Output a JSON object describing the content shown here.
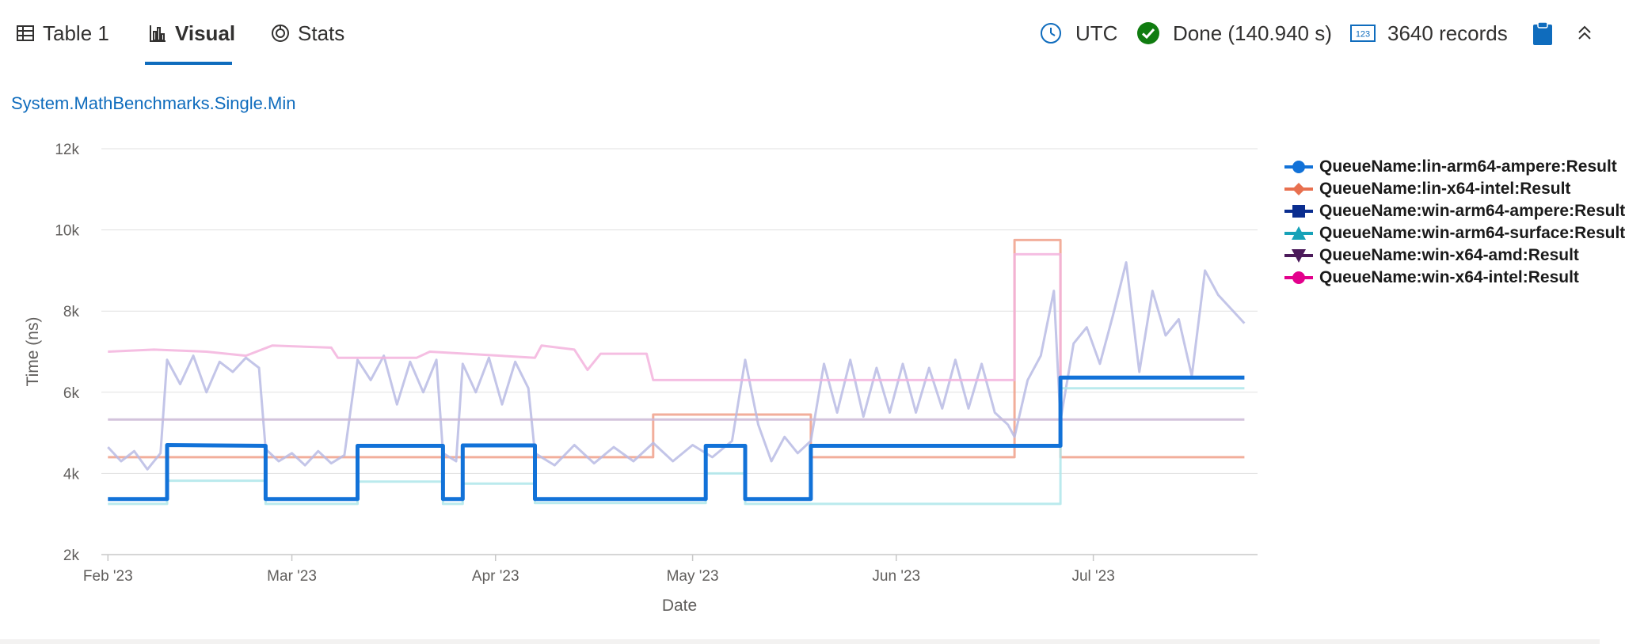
{
  "tabs": [
    {
      "label": "Table 1",
      "icon": "table-icon"
    },
    {
      "label": "Visual",
      "icon": "bar-chart-icon",
      "active": true
    },
    {
      "label": "Stats",
      "icon": "stats-icon"
    }
  ],
  "status": {
    "timezone": "UTC",
    "done_text": "Done (140.940 s)",
    "records_text": "3640 records"
  },
  "colors": {
    "accent": "#0f6cbd",
    "success": "#107c10"
  },
  "chart_data": {
    "type": "line",
    "title": "System.MathBenchmarks.Single.Min",
    "xlabel": "Date",
    "ylabel": "Time (ns)",
    "ylim": [
      2000,
      12000
    ],
    "yticks": [
      2000,
      4000,
      6000,
      8000,
      10000,
      12000
    ],
    "ytick_labels": [
      "2k",
      "4k",
      "6k",
      "8k",
      "10k",
      "12k"
    ],
    "xrange": [
      "2023-01-31",
      "2023-07-26"
    ],
    "xticks": [
      "2023-02-01",
      "2023-03-01",
      "2023-04-01",
      "2023-05-01",
      "2023-06-01",
      "2023-07-01"
    ],
    "xtick_labels": [
      "Feb '23",
      "Mar '23",
      "Apr '23",
      "May '23",
      "Jun '23",
      "Jul '23"
    ],
    "grid": true,
    "legend_position": "right",
    "series": [
      {
        "name": "QueueName:lin-arm64-ampere:Result",
        "color": "#1272d8",
        "marker": "circle",
        "emphasized": true,
        "points": [
          [
            "2023-02-01",
            3370
          ],
          [
            "2023-02-10",
            3370
          ],
          [
            "2023-02-10",
            4700
          ],
          [
            "2023-02-25",
            4680
          ],
          [
            "2023-02-25",
            3370
          ],
          [
            "2023-03-11",
            3370
          ],
          [
            "2023-03-11",
            4680
          ],
          [
            "2023-03-24",
            4680
          ],
          [
            "2023-03-24",
            3370
          ],
          [
            "2023-03-27",
            3370
          ],
          [
            "2023-03-27",
            4690
          ],
          [
            "2023-04-07",
            4690
          ],
          [
            "2023-04-07",
            3370
          ],
          [
            "2023-05-03",
            3370
          ],
          [
            "2023-05-03",
            4680
          ],
          [
            "2023-05-09",
            4680
          ],
          [
            "2023-05-09",
            3370
          ],
          [
            "2023-05-19",
            3370
          ],
          [
            "2023-05-19",
            4680
          ],
          [
            "2023-06-26",
            4680
          ],
          [
            "2023-06-26",
            6360
          ],
          [
            "2023-07-24",
            6360
          ]
        ]
      },
      {
        "name": "QueueName:lin-x64-intel:Result",
        "color": "#f0a08a",
        "marker": "diamond",
        "points": [
          [
            "2023-02-01",
            4400
          ],
          [
            "2023-04-25",
            4400
          ],
          [
            "2023-04-25",
            5450
          ],
          [
            "2023-05-19",
            5450
          ],
          [
            "2023-05-19",
            4400
          ],
          [
            "2023-06-19",
            4400
          ],
          [
            "2023-06-19",
            9750
          ],
          [
            "2023-06-26",
            9750
          ],
          [
            "2023-06-26",
            4400
          ],
          [
            "2023-07-24",
            4400
          ]
        ]
      },
      {
        "name": "QueueName:win-arm64-ampere:Result",
        "color": "#b9bbe4",
        "marker": "square",
        "points": [
          [
            "2023-02-01",
            4650
          ],
          [
            "2023-02-03",
            4300
          ],
          [
            "2023-02-05",
            4550
          ],
          [
            "2023-02-07",
            4100
          ],
          [
            "2023-02-09",
            4500
          ],
          [
            "2023-02-10",
            6800
          ],
          [
            "2023-02-12",
            6200
          ],
          [
            "2023-02-14",
            6900
          ],
          [
            "2023-02-16",
            6000
          ],
          [
            "2023-02-18",
            6750
          ],
          [
            "2023-02-20",
            6500
          ],
          [
            "2023-02-22",
            6850
          ],
          [
            "2023-02-24",
            6600
          ],
          [
            "2023-02-25",
            4600
          ],
          [
            "2023-02-27",
            4300
          ],
          [
            "2023-03-01",
            4500
          ],
          [
            "2023-03-03",
            4200
          ],
          [
            "2023-03-05",
            4550
          ],
          [
            "2023-03-07",
            4250
          ],
          [
            "2023-03-09",
            4450
          ],
          [
            "2023-03-11",
            6800
          ],
          [
            "2023-03-13",
            6300
          ],
          [
            "2023-03-15",
            6900
          ],
          [
            "2023-03-17",
            5700
          ],
          [
            "2023-03-19",
            6750
          ],
          [
            "2023-03-21",
            6000
          ],
          [
            "2023-03-23",
            6800
          ],
          [
            "2023-03-24",
            4500
          ],
          [
            "2023-03-26",
            4300
          ],
          [
            "2023-03-27",
            6700
          ],
          [
            "2023-03-29",
            6000
          ],
          [
            "2023-03-31",
            6850
          ],
          [
            "2023-04-02",
            5700
          ],
          [
            "2023-04-04",
            6750
          ],
          [
            "2023-04-06",
            6100
          ],
          [
            "2023-04-07",
            4500
          ],
          [
            "2023-04-10",
            4200
          ],
          [
            "2023-04-13",
            4700
          ],
          [
            "2023-04-16",
            4250
          ],
          [
            "2023-04-19",
            4650
          ],
          [
            "2023-04-22",
            4300
          ],
          [
            "2023-04-25",
            4750
          ],
          [
            "2023-04-28",
            4300
          ],
          [
            "2023-05-01",
            4700
          ],
          [
            "2023-05-04",
            4400
          ],
          [
            "2023-05-07",
            4800
          ],
          [
            "2023-05-09",
            6800
          ],
          [
            "2023-05-11",
            5200
          ],
          [
            "2023-05-13",
            4300
          ],
          [
            "2023-05-15",
            4900
          ],
          [
            "2023-05-17",
            4500
          ],
          [
            "2023-05-19",
            4800
          ],
          [
            "2023-05-21",
            6700
          ],
          [
            "2023-05-23",
            5500
          ],
          [
            "2023-05-25",
            6800
          ],
          [
            "2023-05-27",
            5400
          ],
          [
            "2023-05-29",
            6600
          ],
          [
            "2023-05-31",
            5500
          ],
          [
            "2023-06-02",
            6700
          ],
          [
            "2023-06-04",
            5500
          ],
          [
            "2023-06-06",
            6600
          ],
          [
            "2023-06-08",
            5600
          ],
          [
            "2023-06-10",
            6800
          ],
          [
            "2023-06-12",
            5600
          ],
          [
            "2023-06-14",
            6700
          ],
          [
            "2023-06-16",
            5500
          ],
          [
            "2023-06-18",
            5200
          ],
          [
            "2023-06-19",
            4900
          ],
          [
            "2023-06-21",
            6300
          ],
          [
            "2023-06-23",
            6900
          ],
          [
            "2023-06-25",
            8500
          ],
          [
            "2023-06-26",
            5300
          ],
          [
            "2023-06-28",
            7200
          ],
          [
            "2023-06-30",
            7600
          ],
          [
            "2023-07-02",
            6700
          ],
          [
            "2023-07-04",
            7900
          ],
          [
            "2023-07-06",
            9200
          ],
          [
            "2023-07-08",
            6500
          ],
          [
            "2023-07-10",
            8500
          ],
          [
            "2023-07-12",
            7400
          ],
          [
            "2023-07-14",
            7800
          ],
          [
            "2023-07-16",
            6400
          ],
          [
            "2023-07-18",
            9000
          ],
          [
            "2023-07-20",
            8400
          ],
          [
            "2023-07-24",
            7700
          ]
        ]
      },
      {
        "name": "QueueName:win-arm64-surface:Result",
        "color": "#aee6ea",
        "marker": "triangle",
        "points": [
          [
            "2023-02-01",
            3250
          ],
          [
            "2023-02-10",
            3250
          ],
          [
            "2023-02-10",
            3820
          ],
          [
            "2023-02-25",
            3820
          ],
          [
            "2023-02-25",
            3250
          ],
          [
            "2023-03-11",
            3250
          ],
          [
            "2023-03-11",
            3800
          ],
          [
            "2023-03-24",
            3800
          ],
          [
            "2023-03-24",
            3250
          ],
          [
            "2023-03-27",
            3250
          ],
          [
            "2023-03-27",
            3750
          ],
          [
            "2023-04-07",
            3750
          ],
          [
            "2023-04-07",
            3270
          ],
          [
            "2023-05-03",
            3270
          ],
          [
            "2023-05-03",
            4000
          ],
          [
            "2023-05-09",
            4000
          ],
          [
            "2023-05-09",
            3250
          ],
          [
            "2023-05-19",
            3250
          ],
          [
            "2023-05-19",
            3250
          ],
          [
            "2023-06-26",
            3250
          ],
          [
            "2023-06-26",
            6100
          ],
          [
            "2023-07-24",
            6100
          ]
        ]
      },
      {
        "name": "QueueName:win-x64-amd:Result",
        "color": "#cbb8d6",
        "marker": "triangle-down",
        "points": [
          [
            "2023-02-01",
            5330
          ],
          [
            "2023-07-24",
            5330
          ]
        ]
      },
      {
        "name": "QueueName:win-x64-intel:Result",
        "color": "#f3b3dd",
        "marker": "circle",
        "points": [
          [
            "2023-02-01",
            7000
          ],
          [
            "2023-02-08",
            7050
          ],
          [
            "2023-02-16",
            7000
          ],
          [
            "2023-02-22",
            6900
          ],
          [
            "2023-02-26",
            7150
          ],
          [
            "2023-03-07",
            7100
          ],
          [
            "2023-03-08",
            6850
          ],
          [
            "2023-03-20",
            6850
          ],
          [
            "2023-03-22",
            7000
          ],
          [
            "2023-04-07",
            6850
          ],
          [
            "2023-04-08",
            7150
          ],
          [
            "2023-04-13",
            7050
          ],
          [
            "2023-04-15",
            6550
          ],
          [
            "2023-04-17",
            6950
          ],
          [
            "2023-04-24",
            6950
          ],
          [
            "2023-04-25",
            6300
          ],
          [
            "2023-06-19",
            6300
          ],
          [
            "2023-06-19",
            9400
          ],
          [
            "2023-06-26",
            9400
          ],
          [
            "2023-06-26",
            6350
          ],
          [
            "2023-07-24",
            6350
          ]
        ]
      }
    ]
  }
}
